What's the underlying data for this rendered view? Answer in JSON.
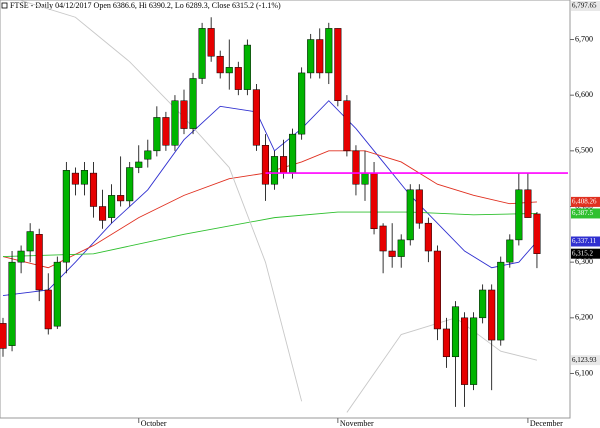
{
  "chart_data": {
    "type": "candlestick",
    "title": "FTSE - Daily 04/12/2017 Open 6386.6, Hi 6390.2, Lo 6289.3, Close 6315.2 (-1.1%)",
    "up_color": "#00b400",
    "down_color": "#e60000",
    "open": [
      6190,
      6150,
      6300,
      6320,
      6350,
      6250,
      6185,
      6300,
      6460,
      6440,
      6460,
      6400,
      6380,
      6420,
      6410,
      6470,
      6485,
      6500,
      6560,
      6510,
      6590,
      6540,
      6630,
      6720,
      6670,
      6640,
      6650,
      6610,
      6610,
      6510,
      6440,
      6490,
      6460,
      6530,
      6640,
      6700,
      6640,
      6720,
      6590,
      6500,
      6440,
      6460,
      6365,
      6320,
      6310,
      6340,
      6430,
      6370,
      6320,
      6180,
      6130,
      6200,
      6080,
      6200,
      6250,
      6160,
      6300,
      6340,
      6430,
      6386.6
    ],
    "high": [
      6200,
      6320,
      6330,
      6370,
      6360,
      6280,
      6310,
      6480,
      6470,
      6480,
      6480,
      6430,
      6440,
      6490,
      6480,
      6510,
      6520,
      6580,
      6570,
      6600,
      6610,
      6640,
      6730,
      6740,
      6680,
      6700,
      6660,
      6700,
      6620,
      6530,
      6500,
      6520,
      6540,
      6650,
      6710,
      6720,
      6730,
      6720,
      6600,
      6510,
      6500,
      6480,
      6370,
      6370,
      6350,
      6440,
      6440,
      6380,
      6330,
      6200,
      6230,
      6210,
      6210,
      6260,
      6260,
      6310,
      6350,
      6460,
      6460,
      6390.2
    ],
    "low": [
      6130,
      6140,
      6280,
      6300,
      6230,
      6170,
      6180,
      6280,
      6420,
      6420,
      6380,
      6360,
      6370,
      6400,
      6400,
      6460,
      6470,
      6490,
      6500,
      6500,
      6530,
      6530,
      6620,
      6660,
      6630,
      6610,
      6600,
      6600,
      6500,
      6410,
      6430,
      6450,
      6450,
      6520,
      6630,
      6630,
      6620,
      6580,
      6490,
      6420,
      6410,
      6350,
      6280,
      6290,
      6290,
      6330,
      6360,
      6300,
      6160,
      6110,
      6040,
      6040,
      6070,
      6190,
      6070,
      6150,
      6290,
      6330,
      6380,
      6289.3
    ],
    "close": [
      6145,
      6300,
      6320,
      6355,
      6250,
      6180,
      6300,
      6465,
      6440,
      6465,
      6400,
      6375,
      6420,
      6410,
      6470,
      6480,
      6500,
      6560,
      6510,
      6590,
      6540,
      6630,
      6720,
      6670,
      6640,
      6650,
      6610,
      6690,
      6510,
      6440,
      6490,
      6460,
      6530,
      6640,
      6700,
      6640,
      6720,
      6590,
      6500,
      6440,
      6460,
      6360,
      6320,
      6310,
      6340,
      6430,
      6370,
      6320,
      6180,
      6130,
      6220,
      6080,
      6200,
      6250,
      6160,
      6300,
      6340,
      6430,
      6380,
      6315.2
    ],
    "series": [
      {
        "color": "#3030d0",
        "x": [
          0,
          5,
          8,
          12,
          16,
          20,
          24,
          28,
          30,
          33,
          36,
          39,
          42,
          45,
          48,
          51,
          54,
          57,
          59
        ],
        "values": [
          6240,
          6250,
          6300,
          6370,
          6430,
          6520,
          6580,
          6570,
          6500,
          6540,
          6590,
          6540,
          6480,
          6420,
          6370,
          6320,
          6290,
          6300,
          6337.11
        ]
      },
      {
        "color": "#e03020",
        "x": [
          0,
          5,
          10,
          15,
          20,
          25,
          29,
          33,
          36,
          40,
          44,
          48,
          52,
          56,
          59
        ],
        "values": [
          6310,
          6290,
          6330,
          6380,
          6420,
          6450,
          6460,
          6480,
          6500,
          6500,
          6480,
          6440,
          6420,
          6405,
          6408.26
        ]
      },
      {
        "color": "#30c030",
        "x": [
          0,
          10,
          20,
          30,
          37,
          45,
          52,
          59
        ],
        "values": [
          6310,
          6315,
          6350,
          6380,
          6390,
          6390,
          6385,
          6387.5
        ]
      },
      {
        "color": "#c8c8c8",
        "x": [
          2,
          8,
          14,
          20,
          25,
          29,
          33
        ],
        "values": [
          6770,
          6740,
          6660,
          6560,
          6470,
          6300,
          6050
        ]
      },
      {
        "color": "#c8c8c8",
        "x": [
          38,
          44,
          50,
          55,
          59
        ],
        "values": [
          6030,
          6170,
          6200,
          6140,
          6123.93
        ]
      }
    ],
    "hline": {
      "value": 6460,
      "from": 29,
      "color": "#ff00ff"
    },
    "ylim": [
      6020,
      6771
    ],
    "yticks": [
      {
        "value": 6100,
        "label": "6,100"
      },
      {
        "value": 6200,
        "label": "6,200"
      },
      {
        "value": 6300,
        "label": "6,300"
      },
      {
        "value": 6400,
        "label": "6,400"
      },
      {
        "value": 6500,
        "label": "6,500"
      },
      {
        "value": 6600,
        "label": "6,600"
      },
      {
        "value": 6700,
        "label": "6,700"
      }
    ],
    "xticks": [
      {
        "value": 15,
        "label": "October"
      },
      {
        "value": 37,
        "label": "November"
      },
      {
        "value": 58,
        "label": "December"
      }
    ],
    "price_labels": [
      {
        "value": 6797.65,
        "label": "6,797.65",
        "color": "#e8e8e8"
      },
      {
        "value": 6408.26,
        "label": "6,408.26",
        "color": "#e03020"
      },
      {
        "value": 6387.5,
        "label": "6,387.5",
        "color": "#30c030"
      },
      {
        "value": 6337.11,
        "label": "6,337.11",
        "color": "#3030d0"
      },
      {
        "value": 6315.2,
        "label": "6,315.2",
        "color": "#000000"
      },
      {
        "value": 6123.93,
        "label": "6,123.93",
        "color": "#e8e8e8"
      }
    ]
  }
}
